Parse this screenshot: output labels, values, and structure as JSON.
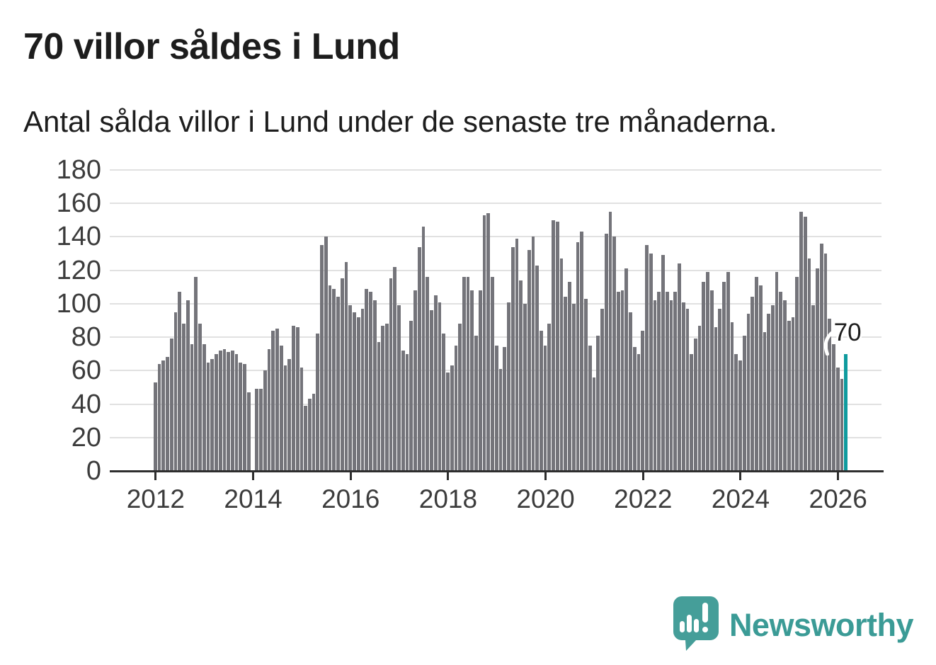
{
  "header": {
    "title": "70 villor såldes i Lund",
    "subtitle": "Antal sålda villor i Lund under de senaste tre månaderna."
  },
  "chart_data": {
    "type": "bar",
    "title": "70 villor såldes i Lund",
    "subtitle": "Antal sålda villor i Lund under de senaste tre månaderna.",
    "ylabel": "",
    "xlabel": "",
    "ylim": [
      0,
      180
    ],
    "y_ticks": [
      0,
      20,
      40,
      60,
      80,
      100,
      120,
      140,
      160,
      180
    ],
    "grid": "horizontal",
    "x_tick_labels": [
      "2012",
      "2014",
      "2016",
      "2018",
      "2020",
      "2022",
      "2024",
      "2026"
    ],
    "x_tick_every_n_bars": 24,
    "x_start": "2012-01",
    "values": [
      53,
      64,
      66,
      68,
      79,
      95,
      107,
      88,
      102,
      76,
      116,
      88,
      76,
      65,
      67,
      70,
      72,
      73,
      71,
      72,
      70,
      65,
      64,
      47,
      0,
      49,
      49,
      60,
      73,
      84,
      85,
      75,
      63,
      67,
      87,
      86,
      62,
      39,
      43,
      46,
      82,
      135,
      140,
      111,
      109,
      104,
      115,
      125,
      99,
      95,
      92,
      97,
      109,
      107,
      102,
      77,
      87,
      88,
      115,
      122,
      99,
      72,
      70,
      90,
      108,
      134,
      146,
      116,
      96,
      105,
      101,
      82,
      59,
      63,
      75,
      88,
      116,
      116,
      108,
      81,
      108,
      153,
      154,
      116,
      75,
      61,
      74,
      101,
      134,
      139,
      114,
      100,
      132,
      140,
      123,
      84,
      75,
      88,
      150,
      149,
      127,
      104,
      113,
      100,
      137,
      143,
      103,
      75,
      56,
      81,
      97,
      142,
      155,
      140,
      107,
      108,
      121,
      95,
      74,
      70,
      84,
      135,
      130,
      102,
      107,
      129,
      107,
      102,
      107,
      124,
      101,
      97,
      70,
      79,
      87,
      113,
      119,
      108,
      86,
      97,
      113,
      119,
      89,
      70,
      66,
      81,
      94,
      104,
      116,
      111,
      83,
      94,
      99,
      119,
      107,
      102,
      90,
      92,
      116,
      155,
      152,
      127,
      99,
      121,
      136,
      130,
      91,
      76,
      62,
      55,
      70
    ],
    "highlight_index": 170,
    "annotation": {
      "text": "70"
    },
    "colors": {
      "bar": "#74747a",
      "highlight": "#0f9b9e",
      "gridline": "#e1e1e1",
      "axis": "#2e2e2e",
      "tick_label": "#3c3c3c"
    }
  },
  "footer": {
    "brand": "Newsworthy",
    "brand_color": "#3b9b96",
    "logo_color": "#459e99",
    "logo_icon": "speech-bubble-bar-chart-exclamation"
  }
}
